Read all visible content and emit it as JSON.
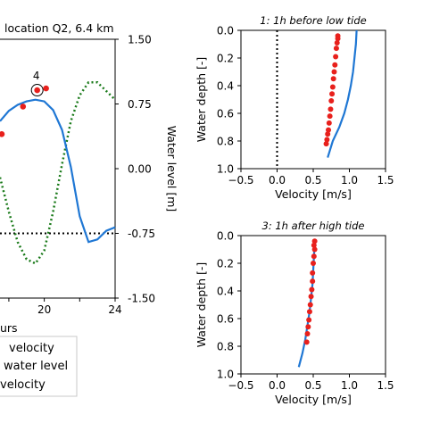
{
  "chart_data": [
    {
      "panel": "left",
      "type": "line",
      "title": "location Q2, 6.4 km",
      "xlabel": "urs",
      "xticks": [
        "20",
        "24"
      ],
      "xlim_shown": [
        17.5,
        24
      ],
      "ylabel_right": "Water level [m]",
      "right_yticks": [
        "1.50",
        "0.75",
        "0.00",
        "-0.75",
        "-1.50"
      ],
      "right_ylim": [
        -1.5,
        1.5
      ],
      "left_axis_ylim": [
        -1.5,
        1.5
      ],
      "colors": {
        "velocity": "#1f77d4",
        "water_level": "#1a7a1a",
        "points": "#e8201c",
        "reference": "#000000"
      },
      "reference_level": -0.75,
      "velocity_curve": {
        "x": [
          17.5,
          18.0,
          18.5,
          19.0,
          19.5,
          20.0,
          20.5,
          21.0,
          21.5,
          22.0,
          22.5,
          23.0,
          23.5,
          24.0
        ],
        "y": [
          0.55,
          0.67,
          0.74,
          0.78,
          0.8,
          0.78,
          0.68,
          0.45,
          0.02,
          -0.55,
          -0.85,
          -0.82,
          -0.72,
          -0.68
        ]
      },
      "water_level_curve": {
        "x": [
          17.5,
          18.0,
          18.5,
          19.0,
          19.5,
          20.0,
          20.5,
          21.0,
          21.5,
          22.0,
          22.5,
          23.0,
          23.5,
          24.0
        ],
        "y": [
          -0.1,
          -0.5,
          -0.85,
          -1.05,
          -1.1,
          -0.95,
          -0.5,
          0.05,
          0.55,
          0.85,
          1.0,
          1.0,
          0.9,
          0.8
        ]
      },
      "highlighted_points": {
        "x": [
          17.6,
          18.8,
          19.6,
          20.1
        ],
        "y": [
          0.4,
          0.72,
          0.91,
          0.93
        ],
        "circled_index": 2,
        "circled_label": "4"
      },
      "legend": {
        "placement": "bottom-left",
        "entries": [
          "velocity",
          "water level",
          "velocity"
        ]
      }
    },
    {
      "panel": "profile-1",
      "type": "line",
      "title": "1: 1h before low tide",
      "xlabel": "Velocity [m/s]",
      "ylabel": "Water depth [-]",
      "xticks": [
        "−0.5",
        "0.0",
        "0.5",
        "1.0",
        "1.5"
      ],
      "yticks": [
        "0.0",
        "0.2",
        "0.4",
        "0.6",
        "0.8",
        "1.0"
      ],
      "xlim": [
        -0.5,
        1.5
      ],
      "ylim": [
        1.0,
        0.0
      ],
      "zero_line_x": 0.0,
      "model": {
        "velocity": [
          1.1,
          1.09,
          1.07,
          1.05,
          1.02,
          0.98,
          0.93,
          0.86,
          0.77,
          0.7
        ],
        "depth": [
          0.0,
          0.1,
          0.2,
          0.3,
          0.4,
          0.5,
          0.6,
          0.7,
          0.8,
          0.92
        ]
      },
      "observed": {
        "velocity": [
          0.84,
          0.84,
          0.83,
          0.82,
          0.81,
          0.8,
          0.79,
          0.78,
          0.77,
          0.76,
          0.75,
          0.74,
          0.73,
          0.72,
          0.71,
          0.7,
          0.69,
          0.68
        ],
        "depth": [
          0.04,
          0.06,
          0.09,
          0.13,
          0.19,
          0.25,
          0.3,
          0.35,
          0.41,
          0.46,
          0.51,
          0.57,
          0.62,
          0.67,
          0.72,
          0.75,
          0.79,
          0.82
        ]
      }
    },
    {
      "panel": "profile-3",
      "type": "line",
      "title": "3: 1h after high tide",
      "xlabel": "Velocity [m/s]",
      "ylabel": "Water depth [-]",
      "xticks": [
        "−0.5",
        "0.0",
        "0.5",
        "1.0",
        "1.5"
      ],
      "yticks": [
        "0.0",
        "0.2",
        "0.4",
        "0.6",
        "0.8",
        "1.0"
      ],
      "xlim": [
        -0.5,
        1.5
      ],
      "ylim": [
        1.0,
        0.0
      ],
      "model": {
        "velocity": [
          0.52,
          0.51,
          0.5,
          0.49,
          0.47,
          0.45,
          0.42,
          0.39,
          0.35,
          0.3
        ],
        "depth": [
          0.05,
          0.15,
          0.25,
          0.35,
          0.45,
          0.55,
          0.65,
          0.75,
          0.85,
          0.95
        ]
      },
      "observed": {
        "velocity": [
          0.52,
          0.51,
          0.52,
          0.51,
          0.5,
          0.49,
          0.49,
          0.48,
          0.47,
          0.46,
          0.45,
          0.44,
          0.43,
          0.42,
          0.41
        ],
        "depth": [
          0.04,
          0.07,
          0.1,
          0.15,
          0.2,
          0.27,
          0.33,
          0.39,
          0.44,
          0.5,
          0.55,
          0.61,
          0.66,
          0.71,
          0.77
        ]
      }
    }
  ]
}
